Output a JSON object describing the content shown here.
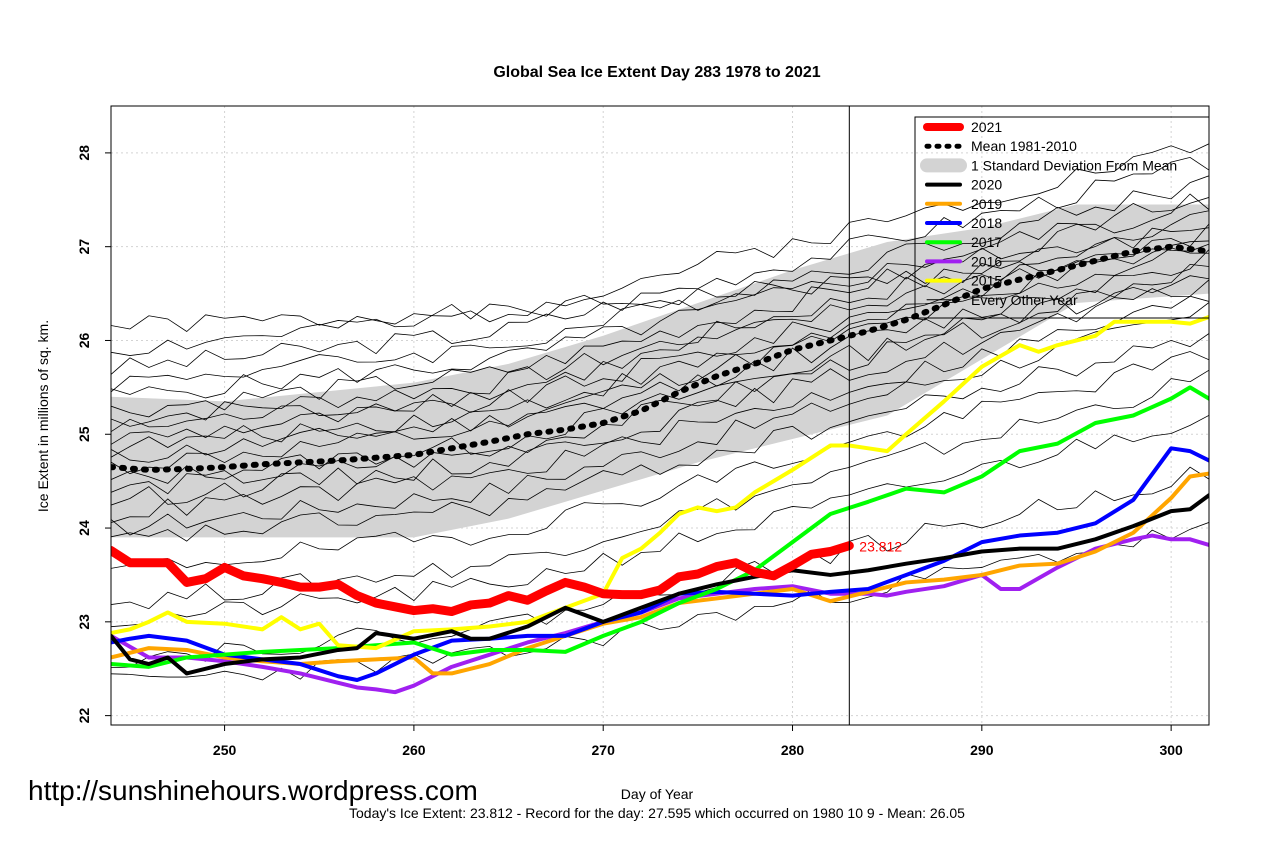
{
  "chart_data": {
    "type": "line",
    "title": "Global Sea Ice Extent Day 283 1978 to 2021",
    "xlabel": "Day of Year",
    "ylabel": "Ice Extent in millions of sq. km.",
    "xlim": [
      244,
      302
    ],
    "ylim": [
      21.9,
      28.5
    ],
    "x_ticks": [
      250,
      260,
      270,
      280,
      290,
      300
    ],
    "y_ticks": [
      22,
      23,
      24,
      25,
      26,
      27,
      28
    ],
    "grid": true,
    "legend_position": "top-right",
    "current_day": 283,
    "current_value": 23.812,
    "current_value_label": "23.812",
    "footer_text": "Today's Ice Extent: 23.812  - Record for the day: 27.595 which occurred on 1980 10 9  - Mean: 26.05",
    "watermark": "http://sunshinehours.wordpress.com",
    "legend": [
      {
        "label": "2021",
        "color": "#ff0000",
        "style": "thick"
      },
      {
        "label": "Mean 1981-2010",
        "color": "#000000",
        "style": "dotted"
      },
      {
        "label": "1 Standard Deviation From Mean",
        "color": "#d3d3d3",
        "style": "band"
      },
      {
        "label": "2020",
        "color": "#000000",
        "style": "solid"
      },
      {
        "label": "2019",
        "color": "#ffa500",
        "style": "solid"
      },
      {
        "label": "2018",
        "color": "#0000ff",
        "style": "solid"
      },
      {
        "label": "2017",
        "color": "#00ff00",
        "style": "solid"
      },
      {
        "label": "2016",
        "color": "#a020f0",
        "style": "solid"
      },
      {
        "label": "2015",
        "color": "#ffff00",
        "style": "solid"
      },
      {
        "label": "Every Other Year",
        "color": "#000000",
        "style": "thin"
      }
    ],
    "band": {
      "x": [
        244,
        250,
        260,
        265,
        270,
        275,
        280,
        285,
        290,
        295,
        302
      ],
      "upper": [
        25.4,
        25.35,
        25.55,
        25.75,
        26.05,
        26.4,
        26.75,
        27.05,
        27.2,
        27.45,
        27.45
      ],
      "lower": [
        23.9,
        23.9,
        23.9,
        24.1,
        24.4,
        24.7,
        24.95,
        25.2,
        25.8,
        26.4,
        26.5
      ]
    },
    "series": [
      {
        "name": "Mean 1981-2010",
        "color": "#000000",
        "style": "dotted",
        "x": [
          244,
          246,
          248,
          250,
          252,
          254,
          256,
          258,
          260,
          262,
          264,
          266,
          268,
          270,
          272,
          274,
          276,
          278,
          280,
          282,
          284,
          286,
          288,
          290,
          292,
          294,
          296,
          298,
          300,
          302
        ],
        "y": [
          24.65,
          24.62,
          24.63,
          24.65,
          24.68,
          24.7,
          24.72,
          24.75,
          24.78,
          24.85,
          24.92,
          25.0,
          25.05,
          25.12,
          25.25,
          25.45,
          25.62,
          25.75,
          25.9,
          26.0,
          26.1,
          26.22,
          26.38,
          26.55,
          26.65,
          26.75,
          26.85,
          26.95,
          27.0,
          26.95
        ]
      },
      {
        "name": "2021",
        "color": "#ff0000",
        "style": "thick",
        "x": [
          244,
          245,
          246,
          247,
          248,
          249,
          250,
          251,
          252,
          253,
          254,
          255,
          256,
          257,
          258,
          259,
          260,
          261,
          262,
          263,
          264,
          265,
          266,
          267,
          268,
          269,
          270,
          271,
          272,
          273,
          274,
          275,
          276,
          277,
          278,
          279,
          280,
          281,
          282,
          283
        ],
        "y": [
          23.76,
          23.63,
          23.63,
          23.63,
          23.42,
          23.46,
          23.58,
          23.49,
          23.46,
          23.42,
          23.37,
          23.37,
          23.4,
          23.28,
          23.2,
          23.16,
          23.12,
          23.14,
          23.11,
          23.18,
          23.2,
          23.28,
          23.23,
          23.33,
          23.42,
          23.37,
          23.3,
          23.29,
          23.29,
          23.34,
          23.48,
          23.51,
          23.59,
          23.63,
          23.53,
          23.49,
          23.6,
          23.72,
          23.75,
          23.812
        ]
      },
      {
        "name": "2020",
        "color": "#000000",
        "style": "solid",
        "x": [
          244,
          245,
          246,
          247,
          248,
          250,
          252,
          254,
          256,
          257,
          258,
          260,
          262,
          263,
          264,
          266,
          268,
          270,
          272,
          274,
          276,
          278,
          280,
          282,
          284,
          286,
          288,
          290,
          292,
          294,
          296,
          298,
          300,
          301,
          302
        ],
        "y": [
          22.85,
          22.6,
          22.55,
          22.62,
          22.45,
          22.55,
          22.6,
          22.62,
          22.7,
          22.72,
          22.88,
          22.82,
          22.9,
          22.82,
          22.82,
          22.95,
          23.15,
          23.0,
          23.15,
          23.3,
          23.4,
          23.48,
          23.55,
          23.5,
          23.55,
          23.62,
          23.68,
          23.75,
          23.78,
          23.78,
          23.88,
          24.02,
          24.18,
          24.2,
          24.35
        ]
      },
      {
        "name": "2019",
        "color": "#ffa500",
        "style": "solid",
        "x": [
          244,
          246,
          248,
          250,
          252,
          254,
          256,
          258,
          260,
          261,
          262,
          264,
          266,
          268,
          270,
          272,
          274,
          276,
          278,
          280,
          282,
          284,
          286,
          288,
          290,
          292,
          294,
          296,
          298,
          300,
          301,
          302
        ],
        "y": [
          22.62,
          22.72,
          22.7,
          22.62,
          22.58,
          22.55,
          22.58,
          22.6,
          22.62,
          22.45,
          22.45,
          22.55,
          22.72,
          22.85,
          22.98,
          23.05,
          23.2,
          23.25,
          23.3,
          23.35,
          23.22,
          23.32,
          23.42,
          23.45,
          23.5,
          23.6,
          23.62,
          23.75,
          23.95,
          24.32,
          24.55,
          24.58
        ]
      },
      {
        "name": "2018",
        "color": "#0000ff",
        "style": "solid",
        "x": [
          244,
          245,
          246,
          248,
          250,
          252,
          254,
          256,
          257,
          258,
          260,
          262,
          264,
          266,
          268,
          270,
          272,
          274,
          276,
          278,
          280,
          282,
          284,
          286,
          288,
          290,
          292,
          294,
          296,
          298,
          300,
          301,
          302
        ],
        "y": [
          22.78,
          22.82,
          22.85,
          22.8,
          22.65,
          22.6,
          22.55,
          22.42,
          22.38,
          22.45,
          22.65,
          22.8,
          22.82,
          22.85,
          22.85,
          23.0,
          23.1,
          23.3,
          23.32,
          23.3,
          23.28,
          23.32,
          23.35,
          23.5,
          23.65,
          23.85,
          23.92,
          23.95,
          24.05,
          24.3,
          24.85,
          24.82,
          24.72
        ]
      },
      {
        "name": "2017",
        "color": "#00ff00",
        "style": "solid",
        "x": [
          244,
          246,
          248,
          250,
          252,
          254,
          256,
          258,
          260,
          262,
          264,
          266,
          268,
          270,
          272,
          274,
          276,
          278,
          280,
          282,
          284,
          286,
          288,
          290,
          292,
          294,
          296,
          298,
          300,
          301,
          302
        ],
        "y": [
          22.55,
          22.52,
          22.62,
          22.65,
          22.68,
          22.7,
          22.72,
          22.75,
          22.78,
          22.65,
          22.7,
          22.7,
          22.68,
          22.85,
          23.0,
          23.2,
          23.35,
          23.55,
          23.85,
          24.15,
          24.28,
          24.42,
          24.38,
          24.55,
          24.82,
          24.9,
          25.12,
          25.2,
          25.38,
          25.5,
          25.38
        ]
      },
      {
        "name": "2016",
        "color": "#a020f0",
        "style": "solid",
        "x": [
          244,
          246,
          248,
          250,
          252,
          254,
          256,
          257,
          258,
          259,
          260,
          262,
          264,
          266,
          268,
          270,
          272,
          274,
          276,
          278,
          280,
          282,
          284,
          285,
          286,
          288,
          290,
          291,
          292,
          294,
          296,
          298,
          299,
          300,
          301,
          302
        ],
        "y": [
          22.85,
          22.62,
          22.62,
          22.58,
          22.52,
          22.45,
          22.35,
          22.3,
          22.28,
          22.25,
          22.32,
          22.52,
          22.65,
          22.78,
          22.88,
          23.0,
          23.1,
          23.25,
          23.3,
          23.35,
          23.38,
          23.3,
          23.3,
          23.28,
          23.32,
          23.38,
          23.5,
          23.35,
          23.35,
          23.58,
          23.78,
          23.88,
          23.92,
          23.88,
          23.88,
          23.82
        ]
      },
      {
        "name": "2015",
        "color": "#ffff00",
        "style": "solid",
        "x": [
          244,
          245,
          246,
          247,
          248,
          250,
          252,
          253,
          254,
          255,
          256,
          258,
          260,
          262,
          264,
          266,
          268,
          270,
          271,
          272,
          273,
          274,
          275,
          276,
          277,
          278,
          280,
          282,
          283,
          284,
          285,
          286,
          288,
          290,
          292,
          293,
          294,
          296,
          297,
          298,
          300,
          301,
          302
        ],
        "y": [
          22.88,
          22.92,
          23.0,
          23.1,
          23.0,
          22.98,
          22.92,
          23.05,
          22.92,
          22.98,
          22.75,
          22.72,
          22.9,
          22.92,
          22.95,
          23.0,
          23.15,
          23.3,
          23.68,
          23.78,
          23.95,
          24.15,
          24.22,
          24.18,
          24.22,
          24.38,
          24.62,
          24.88,
          24.88,
          24.85,
          24.82,
          25.0,
          25.35,
          25.72,
          25.95,
          25.88,
          25.95,
          26.05,
          26.2,
          26.2,
          26.2,
          26.18,
          26.25
        ]
      }
    ],
    "background_years": [
      {
        "y0": 26.15,
        "y1": 26.95,
        "seed": 1
      },
      {
        "y0": 25.9,
        "y1": 28.1,
        "seed": 2
      },
      {
        "y0": 25.7,
        "y1": 27.9,
        "seed": 3
      },
      {
        "y0": 25.55,
        "y1": 27.7,
        "seed": 4
      },
      {
        "y0": 25.4,
        "y1": 27.55,
        "seed": 5
      },
      {
        "y0": 25.25,
        "y1": 27.5,
        "seed": 6
      },
      {
        "y0": 25.15,
        "y1": 27.35,
        "seed": 7
      },
      {
        "y0": 25.05,
        "y1": 27.25,
        "seed": 8
      },
      {
        "y0": 24.95,
        "y1": 27.15,
        "seed": 9
      },
      {
        "y0": 24.85,
        "y1": 27.05,
        "seed": 10
      },
      {
        "y0": 24.75,
        "y1": 27.0,
        "seed": 11
      },
      {
        "y0": 24.65,
        "y1": 26.9,
        "seed": 12
      },
      {
        "y0": 24.5,
        "y1": 26.8,
        "seed": 13
      },
      {
        "y0": 24.4,
        "y1": 26.75,
        "seed": 14
      },
      {
        "y0": 24.3,
        "y1": 26.6,
        "seed": 15
      },
      {
        "y0": 24.15,
        "y1": 26.45,
        "seed": 16
      },
      {
        "y0": 24.0,
        "y1": 26.3,
        "seed": 17
      },
      {
        "y0": 23.85,
        "y1": 26.05,
        "seed": 18
      },
      {
        "y0": 23.55,
        "y1": 25.85,
        "seed": 19
      },
      {
        "y0": 23.2,
        "y1": 25.6,
        "seed": 20
      },
      {
        "y0": 23.0,
        "y1": 25.2,
        "seed": 21
      },
      {
        "y0": 22.6,
        "y1": 24.6,
        "seed": 22
      },
      {
        "y0": 22.35,
        "y1": 24.0,
        "seed": 23
      }
    ]
  }
}
